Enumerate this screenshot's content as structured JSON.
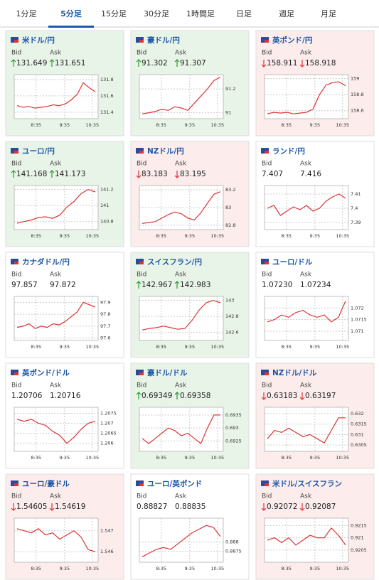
{
  "tabs": [
    "1分足",
    "5分足",
    "15分足",
    "30分足",
    "1時間足",
    "日足",
    "週足",
    "月足"
  ],
  "active_tab": 1,
  "labels": {
    "bid": "Bid",
    "ask": "Ask"
  },
  "pairs": [
    {
      "name": "米ドル/円",
      "trend": "up",
      "bid": "131.649",
      "ask": "131.651",
      "chart": {
        "xticks": [
          "8:35",
          "9:35",
          "10:35"
        ],
        "ylim": [
          131.32,
          131.86
        ],
        "yticks": [
          131.4,
          131.6,
          131.8
        ],
        "values": [
          131.48,
          131.46,
          131.47,
          131.45,
          131.46,
          131.47,
          131.49,
          131.48,
          131.5,
          131.55,
          131.62,
          131.76,
          131.7,
          131.65
        ]
      }
    },
    {
      "name": "豪ドル/円",
      "trend": "up",
      "bid": "91.302",
      "ask": "91.307",
      "chart": {
        "xticks": [
          "8:35",
          "9:35",
          "10:35"
        ],
        "ylim": [
          90.95,
          91.32
        ],
        "yticks": [
          91,
          91.2
        ],
        "values": [
          90.99,
          91.0,
          91.01,
          91.03,
          91.02,
          91.05,
          91.04,
          91.02,
          91.08,
          91.14,
          91.2,
          91.27,
          91.3
        ]
      }
    },
    {
      "name": "英ポンド/円",
      "trend": "down",
      "bid": "158.911",
      "ask": "158.918",
      "chart": {
        "xticks": [
          "8:35",
          "9:35",
          "10:35"
        ],
        "ylim": [
          158.5,
          159.05
        ],
        "yticks": [
          158.6,
          158.8,
          159
        ],
        "values": [
          158.56,
          158.58,
          158.57,
          158.58,
          158.56,
          158.57,
          158.58,
          158.62,
          158.8,
          158.92,
          158.95,
          158.96,
          158.91
        ]
      }
    },
    {
      "name": "ユーロ/円",
      "trend": "up",
      "bid": "141.168",
      "ask": "141.173",
      "chart": {
        "xticks": [
          "8:35",
          "9:35",
          "10:35"
        ],
        "ylim": [
          140.7,
          141.25
        ],
        "yticks": [
          140.8,
          141,
          141.2
        ],
        "values": [
          140.78,
          140.8,
          140.82,
          140.85,
          140.86,
          140.84,
          140.88,
          140.98,
          141.05,
          141.15,
          141.2,
          141.17
        ]
      }
    },
    {
      "name": "NZドル/円",
      "trend": "down",
      "bid": "83.183",
      "ask": "83.195",
      "chart": {
        "xticks": [
          "8:35",
          "9:35",
          "10:35"
        ],
        "ylim": [
          82.75,
          83.25
        ],
        "yticks": [
          82.8,
          83,
          83.2
        ],
        "values": [
          82.82,
          82.83,
          82.84,
          82.88,
          82.92,
          82.95,
          82.93,
          82.88,
          82.86,
          82.94,
          83.05,
          83.15,
          83.18
        ]
      }
    },
    {
      "name": "ランド/円",
      "trend": "flat",
      "bid": "7.407",
      "ask": "7.416",
      "chart": {
        "xticks": [
          "8:35",
          "9:35",
          "10:35"
        ],
        "ylim": [
          7.385,
          7.416
        ],
        "yticks": [
          7.39,
          7.4,
          7.41
        ],
        "values": [
          7.4,
          7.402,
          7.395,
          7.398,
          7.401,
          7.399,
          7.402,
          7.398,
          7.4,
          7.405,
          7.408,
          7.41,
          7.407
        ]
      }
    },
    {
      "name": "カナダドル/円",
      "trend": "flat",
      "bid": "97.857",
      "ask": "97.872",
      "chart": {
        "xticks": [
          "8:35",
          "9:35",
          "10:35"
        ],
        "ylim": [
          97.58,
          97.95
        ],
        "yticks": [
          97.6,
          97.7,
          97.8,
          97.9
        ],
        "values": [
          97.69,
          97.7,
          97.72,
          97.68,
          97.7,
          97.69,
          97.72,
          97.71,
          97.74,
          97.78,
          97.82,
          97.9,
          97.88,
          97.86
        ]
      }
    },
    {
      "name": "スイスフラン/円",
      "trend": "up",
      "bid": "142.967",
      "ask": "142.983",
      "chart": {
        "xticks": [
          "8:35",
          "9:35",
          "10:35"
        ],
        "ylim": [
          142.5,
          143.05
        ],
        "yticks": [
          142.6,
          142.8,
          143
        ],
        "values": [
          142.63,
          142.65,
          142.66,
          142.68,
          142.66,
          142.64,
          142.65,
          142.75,
          142.88,
          142.97,
          143.0,
          142.97
        ]
      }
    },
    {
      "name": "ユーロ/ドル",
      "trend": "flat",
      "bid": "1.07230",
      "ask": "1.07234",
      "chart": {
        "xticks": [
          "8:35",
          "9:35",
          "10:35"
        ],
        "ylim": [
          1.0706,
          1.0725
        ],
        "yticks": [
          1.071,
          1.0715,
          1.072
        ],
        "values": [
          1.0714,
          1.0715,
          1.0717,
          1.0716,
          1.0718,
          1.0719,
          1.0717,
          1.0716,
          1.0717,
          1.0714,
          1.0716,
          1.0723
        ]
      }
    },
    {
      "name": "英ポンド/ドル",
      "trend": "flat",
      "bid": "1.20706",
      "ask": "1.20716",
      "chart": {
        "xticks": [
          "8:35",
          "9:35",
          "10:35"
        ],
        "ylim": [
          1.2056,
          1.2078
        ],
        "yticks": [
          1.206,
          1.2065,
          1.207,
          1.2075
        ],
        "values": [
          1.2072,
          1.2071,
          1.2072,
          1.207,
          1.2069,
          1.2066,
          1.2064,
          1.206,
          1.2063,
          1.2067,
          1.207,
          1.2071
        ]
      }
    },
    {
      "name": "豪ドル/ドル",
      "trend": "up",
      "bid": "0.69349",
      "ask": "0.69358",
      "chart": {
        "xticks": [
          "8:35",
          "9:35",
          "10:35"
        ],
        "ylim": [
          0.6921,
          0.6938
        ],
        "yticks": [
          0.6925,
          0.693,
          0.6935
        ],
        "values": [
          0.6926,
          0.6924,
          0.6926,
          0.6928,
          0.693,
          0.6929,
          0.6927,
          0.6928,
          0.6926,
          0.6924,
          0.693,
          0.6935,
          0.6935
        ]
      }
    },
    {
      "name": "NZドル/ドル",
      "trend": "down",
      "bid": "0.63183",
      "ask": "0.63197",
      "chart": {
        "xticks": [
          "8:35",
          "9:35",
          "10:35"
        ],
        "ylim": [
          0.6302,
          0.6323
        ],
        "yticks": [
          0.6305,
          0.631,
          0.6315,
          0.632
        ],
        "values": [
          0.6308,
          0.6312,
          0.6311,
          0.6313,
          0.6311,
          0.6309,
          0.631,
          0.6308,
          0.6306,
          0.6312,
          0.6318,
          0.6318
        ]
      }
    },
    {
      "name": "ユーロ/豪ドル",
      "trend": "down",
      "bid": "1.54605",
      "ask": "1.54619",
      "chart": {
        "xticks": [
          "8:35",
          "9:35",
          "10:35"
        ],
        "ylim": [
          1.5455,
          1.5476
        ],
        "yticks": [
          1.546,
          1.547
        ],
        "values": [
          1.5471,
          1.547,
          1.5469,
          1.5471,
          1.5468,
          1.5469,
          1.5466,
          1.5468,
          1.547,
          1.5467,
          1.5461,
          1.546
        ]
      }
    },
    {
      "name": "ユーロ/英ポンド",
      "trend": "flat",
      "bid": "0.88827",
      "ask": "0.88835",
      "chart": {
        "xticks": [
          "8:35",
          "9:35",
          "10:35"
        ],
        "ylim": [
          0.8869,
          0.8893
        ],
        "yticks": [
          0.8875,
          0.888
        ],
        "values": [
          0.8872,
          0.8874,
          0.8876,
          0.8877,
          0.8876,
          0.8879,
          0.8882,
          0.8885,
          0.8887,
          0.8889,
          0.8888,
          0.8883
        ]
      }
    },
    {
      "name": "米ドル/スイスフラン",
      "trend": "down",
      "bid": "0.92072",
      "ask": "0.92087",
      "chart": {
        "xticks": [
          "8:35",
          "9:35",
          "10:35"
        ],
        "ylim": [
          0.92,
          0.9218
        ],
        "yticks": [
          0.9205,
          0.921,
          0.9215
        ],
        "values": [
          0.9209,
          0.921,
          0.9208,
          0.921,
          0.9207,
          0.9209,
          0.9211,
          0.921,
          0.921,
          0.9214,
          0.9211,
          0.9207
        ]
      }
    }
  ]
}
